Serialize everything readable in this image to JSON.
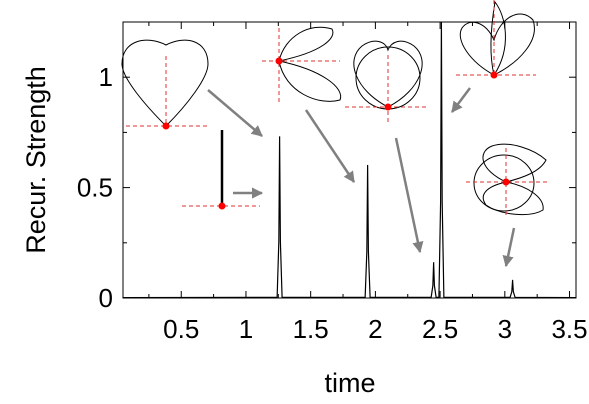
{
  "chart_data": {
    "type": "line",
    "title": "",
    "xlabel": "time",
    "ylabel": "Recur. Strength",
    "xlim": [
      0.05,
      3.55
    ],
    "ylim": [
      0,
      1.25
    ],
    "xticks": [
      0.5,
      1,
      1.5,
      2,
      2.5,
      3,
      3.5
    ],
    "xtick_labels": [
      "0.5",
      "1",
      "1.5",
      "2",
      "2.5",
      "3",
      "3.5"
    ],
    "yticks": [
      0,
      0.5,
      1
    ],
    "ytick_labels": [
      "0",
      "0.5",
      "1"
    ],
    "grid": false,
    "legend": "none",
    "series": [
      {
        "peaks": [
          {
            "x": 1.26,
            "y": 0.73
          },
          {
            "x": 1.94,
            "y": 0.6
          },
          {
            "x": 2.45,
            "y": 0.16
          },
          {
            "x": 2.51,
            "y": 1.25
          },
          {
            "x": 3.06,
            "y": 0.08
          }
        ]
      }
    ],
    "colors": {
      "line": "#000000",
      "dot": "#ff0000",
      "crosshair": "#e03030",
      "arrow": "#808080"
    }
  }
}
